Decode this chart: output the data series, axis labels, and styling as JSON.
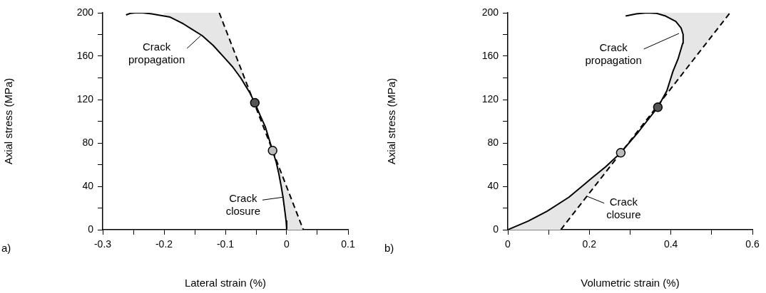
{
  "chart_data": [
    {
      "type": "line",
      "xlabel": "Lateral strain (%)",
      "ylabel": "Axial stress (MPa)",
      "xlim": [
        -0.3,
        0.1
      ],
      "ylim": [
        0,
        200
      ],
      "xticks": [
        -0.3,
        {
          "value": -0.25,
          "label": null
        },
        -0.2,
        {
          "value": -0.15,
          "label": null
        },
        -0.1,
        {
          "value": -0.05,
          "label": null
        },
        0,
        {
          "value": 0.05,
          "label": null
        },
        0.1
      ],
      "yticks": [
        0,
        {
          "value": 20,
          "label": null
        },
        40,
        {
          "value": 60,
          "label": null
        },
        80,
        {
          "value": 100,
          "label": null
        },
        120,
        {
          "value": 140,
          "label": null
        },
        160,
        {
          "value": 180,
          "label": null
        },
        200
      ],
      "series": [
        {
          "type": "area",
          "color": "#e6e6e6",
          "x": [
            -0.06,
            -0.075,
            -0.088,
            -0.099,
            -0.12,
            -0.138,
            -0.155,
            -0.169,
            -0.19,
            -0.2,
            -0.2,
            -0.11,
            -0.059
          ],
          "values": [
            126,
            140,
            150,
            157,
            170,
            179,
            185,
            190,
            196,
            197.5,
            200,
            200,
            126
          ]
        },
        {
          "type": "area",
          "color": "#e6e6e6",
          "x": [
            -0.017,
            -0.013,
            -0.009,
            -0.006,
            -0.003,
            -0.001,
            0,
            0.027,
            -0.0155
          ],
          "values": [
            62,
            52,
            40,
            30,
            17,
            8,
            0,
            0,
            62
          ]
        },
        {
          "type": "line",
          "color": "#000000",
          "line_style": "dashed",
          "x": [
            -0.11,
            0.027
          ],
          "values": [
            200,
            0
          ]
        },
        {
          "type": "line",
          "color": "#000000",
          "line_style": "solid",
          "x": [
            -0.262,
            -0.255,
            -0.247,
            -0.235,
            -0.22,
            -0.205,
            -0.19,
            -0.169,
            -0.155,
            -0.138,
            -0.12,
            -0.099,
            -0.088,
            -0.075,
            -0.06,
            -0.052,
            -0.043,
            -0.035,
            -0.023,
            -0.017,
            -0.013,
            -0.009,
            -0.006,
            -0.003,
            -0.001,
            0
          ],
          "values": [
            198,
            199.5,
            200,
            200,
            199,
            197.5,
            196,
            190,
            185,
            179,
            170,
            157,
            150,
            140,
            126,
            117,
            105,
            95,
            73,
            62,
            52,
            40,
            30,
            17,
            8,
            0
          ]
        },
        {
          "type": "scatter",
          "marker": "circle",
          "color": "#555555",
          "x": [
            -0.052
          ],
          "values": [
            117
          ]
        },
        {
          "type": "scatter",
          "marker": "circle",
          "color": "#bbbbbb",
          "x": [
            -0.023
          ],
          "values": [
            73
          ]
        }
      ],
      "annotations": [
        {
          "text": "Crack\npropagation",
          "x": -0.14,
          "y": 179
        },
        {
          "text": "Crack\nclosure",
          "x": -0.006,
          "y": 30
        },
        "a)"
      ]
    },
    {
      "type": "line",
      "xlabel": "Volumetric strain (%)",
      "ylabel": "Axial stress (MPa)",
      "xlim": [
        0,
        0.6
      ],
      "ylim": [
        0,
        200
      ],
      "xticks": [
        0,
        {
          "value": 0.1,
          "label": null
        },
        0.2,
        {
          "value": 0.3,
          "label": null
        },
        0.4,
        {
          "value": 0.5,
          "label": null
        },
        0.6
      ],
      "yticks": [
        0,
        {
          "value": 20,
          "label": null
        },
        40,
        {
          "value": 60,
          "label": null
        },
        80,
        {
          "value": 100,
          "label": null
        },
        120,
        {
          "value": 140,
          "label": null
        },
        160,
        {
          "value": 180,
          "label": null
        },
        200
      ],
      "series": [
        {
          "type": "area",
          "color": "#e6e6e6",
          "x": [
            0,
            0.05,
            0.096,
            0.15,
            0.201,
            0.24,
            0.265,
            0.13
          ],
          "values": [
            0,
            8,
            17,
            30,
            46,
            58,
            65,
            0
          ]
        },
        {
          "type": "area",
          "color": "#e6e6e6",
          "x": [
            0.369,
            0.39,
            0.405,
            0.418,
            0.429,
            0.43,
            0.425,
            0.412,
            0.387,
            0.37,
            0.37,
            0.545
          ],
          "values": [
            115,
            128,
            146,
            158,
            172,
            180,
            186,
            192,
            197,
            199.5,
            200,
            200
          ]
        },
        {
          "type": "line",
          "color": "#000000",
          "line_style": "dashed",
          "x": [
            0.13,
            0.545
          ],
          "values": [
            0,
            200
          ]
        },
        {
          "type": "line",
          "color": "#000000",
          "line_style": "solid",
          "x": [
            0,
            0.05,
            0.096,
            0.15,
            0.201,
            0.24,
            0.277,
            0.32,
            0.368,
            0.39,
            0.405,
            0.418,
            0.429,
            0.43,
            0.425,
            0.412,
            0.387,
            0.365,
            0.341,
            0.315,
            0.289
          ],
          "values": [
            0,
            8,
            17,
            30,
            46,
            58,
            71,
            90,
            113,
            128,
            146,
            158,
            172,
            180,
            186,
            192,
            197,
            199.5,
            200,
            199,
            197
          ]
        },
        {
          "type": "scatter",
          "marker": "circle",
          "color": "#bbbbbb",
          "x": [
            0.277
          ],
          "values": [
            71
          ]
        },
        {
          "type": "scatter",
          "marker": "circle",
          "color": "#555555",
          "x": [
            0.368
          ],
          "values": [
            113
          ]
        }
      ],
      "annotations": [
        {
          "text": "Crack\npropagation",
          "x": 0.42,
          "y": 181
        },
        {
          "text": "Crack\nclosure",
          "x": 0.193,
          "y": 31
        },
        "b)"
      ]
    }
  ]
}
